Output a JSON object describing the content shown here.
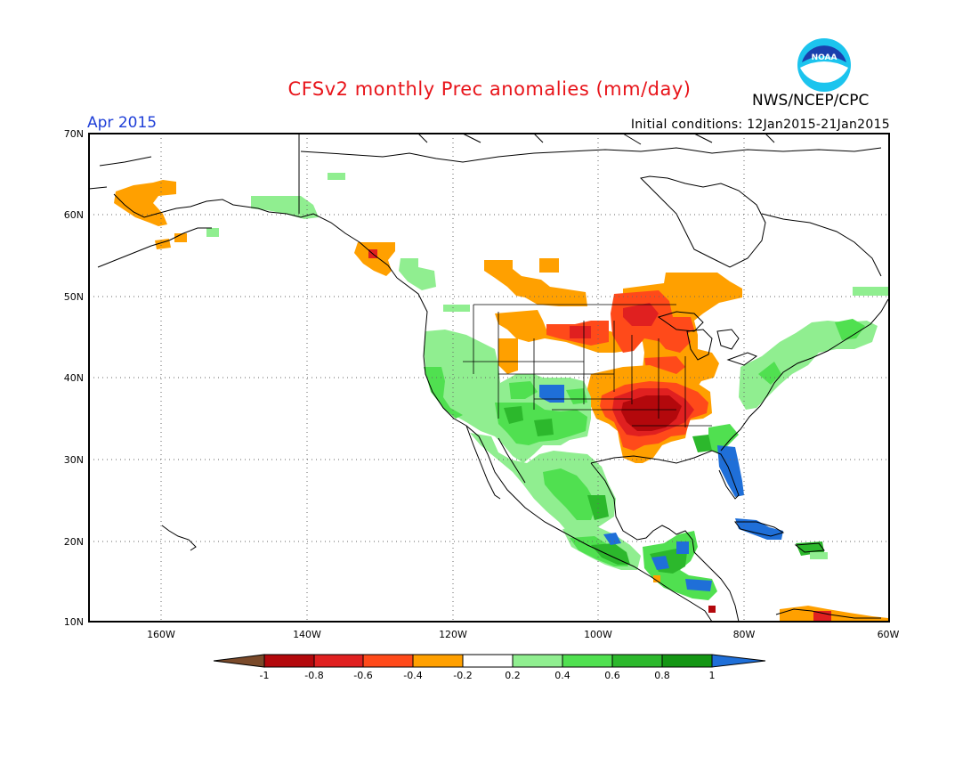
{
  "title": "CFSv2 monthly Prec anomalies (mm/day)",
  "agency": "NWS/NCEP/CPC",
  "logo_text": "NOAA",
  "month": "Apr 2015",
  "initial_conditions": "Initial conditions: 12Jan2015-21Jan2015",
  "axes": {
    "lat_labels": [
      "70N",
      "60N",
      "50N",
      "40N",
      "30N",
      "20N",
      "10N"
    ],
    "lon_labels": [
      "160W",
      "140W",
      "120W",
      "100W",
      "80W",
      "60W"
    ],
    "lat_range": [
      10,
      70
    ],
    "lon_range": [
      -172,
      -60
    ]
  },
  "colorbar": {
    "labels": [
      "-1",
      "-0.8",
      "-0.6",
      "-0.4",
      "-0.2",
      "0.2",
      "0.4",
      "0.6",
      "0.8",
      "1"
    ],
    "colors": [
      "#7a4a2a",
      "#b3080c",
      "#e02020",
      "#ff4a1a",
      "#ffa000",
      "#ffffff",
      "#90ee90",
      "#50e050",
      "#2cb82c",
      "#149614",
      "#1f6fd8"
    ]
  },
  "anomaly_regions": [
    {
      "name": "alaska-southwest-dry",
      "level": -0.3,
      "color": "#ffa000"
    },
    {
      "name": "canada-prairie-dry",
      "level": -0.3,
      "color": "#ffa000"
    },
    {
      "name": "northern-plains-dry",
      "level": -0.5,
      "color": "#ff4a1a"
    },
    {
      "name": "midwest-core-very-dry",
      "level": -0.9,
      "color": "#b3080c"
    },
    {
      "name": "great-lakes-dry",
      "level": -0.3,
      "color": "#ffa000"
    },
    {
      "name": "southwest-us-wet",
      "level": 0.5,
      "color": "#50e050"
    },
    {
      "name": "colorado-wet",
      "level": 1.0,
      "color": "#1f6fd8"
    },
    {
      "name": "florida-wet",
      "level": 1.0,
      "color": "#1f6fd8"
    },
    {
      "name": "central-america-wet",
      "level": 0.7,
      "color": "#2cb82c"
    },
    {
      "name": "cuba-wet",
      "level": 1.0,
      "color": "#1f6fd8"
    },
    {
      "name": "east-coast-wet",
      "level": 0.4,
      "color": "#90ee90"
    },
    {
      "name": "mexico-west-wet",
      "level": 0.4,
      "color": "#90ee90"
    }
  ]
}
